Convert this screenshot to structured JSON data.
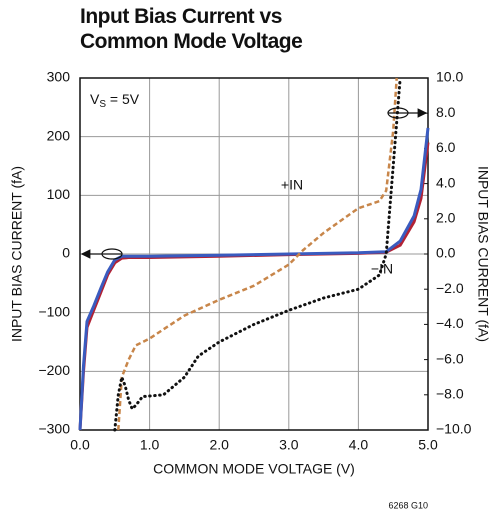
{
  "chart_data": {
    "type": "line",
    "title": "Input Bias Current vs Common Mode Voltage",
    "supply_label": {
      "symbol": "V",
      "subscript": "S",
      "text": " = 5V"
    },
    "x_label": "COMMON MODE VOLTAGE (V)",
    "y_label": "INPUT BIAS CURRENT (fA)",
    "y2_label": "INPUT BIAS CURRENT (fA)",
    "footnote": "6268 G10",
    "grid": true,
    "xlim": [
      0,
      5
    ],
    "xticks": [
      {
        "value": 0,
        "label": "0.0"
      },
      {
        "value": 1,
        "label": "1.0"
      },
      {
        "value": 2,
        "label": "2.0"
      },
      {
        "value": 3,
        "label": "3.0"
      },
      {
        "value": 4,
        "label": "4.0"
      },
      {
        "value": 5,
        "label": "5.0"
      }
    ],
    "ylim": [
      -300,
      300
    ],
    "yticks": [
      {
        "value": -300,
        "label": "−300"
      },
      {
        "value": -200,
        "label": "−200"
      },
      {
        "value": -100,
        "label": "−100"
      },
      0,
      100,
      200,
      300
    ],
    "y2lim": [
      -10,
      10
    ],
    "y2ticks": [
      {
        "value": -10,
        "label": "−10.0"
      },
      {
        "value": -8,
        "label": "−8.0"
      },
      {
        "value": -6,
        "label": "−6.0"
      },
      {
        "value": -4,
        "label": "−4.0"
      },
      {
        "value": -2,
        "label": "−2.0"
      },
      {
        "value": 0,
        "label": "0.0"
      },
      {
        "value": 2,
        "label": "2.0"
      },
      {
        "value": 4,
        "label": "4.0"
      },
      {
        "value": 6,
        "label": "6.0"
      },
      {
        "value": 8,
        "label": "8.0"
      },
      {
        "value": 10,
        "label": "10.0"
      }
    ],
    "series": [
      {
        "color": "#b22234",
        "style": "solid",
        "x": [
          0,
          0.05,
          0.1,
          0.2,
          0.3,
          0.4,
          0.5,
          0.6,
          0.7,
          1.0,
          2.0,
          3.0,
          4.0,
          4.4,
          4.6,
          4.8,
          4.9,
          5.0
        ],
        "values": [
          -300,
          -200,
          -125,
          -95,
          -65,
          -35,
          -15,
          -7,
          -6,
          -6,
          -4,
          -1,
          1,
          3,
          15,
          55,
          95,
          190
        ]
      },
      {
        "color": "#3a5bbf",
        "style": "solid",
        "x": [
          0,
          0.05,
          0.1,
          0.2,
          0.3,
          0.4,
          0.5,
          0.6,
          0.7,
          1.0,
          2.0,
          3.0,
          4.0,
          4.4,
          4.6,
          4.8,
          4.9,
          5.0
        ],
        "values": [
          -300,
          -190,
          -115,
          -88,
          -58,
          -30,
          -10,
          -4,
          -4,
          -4,
          -2,
          0,
          2,
          4,
          22,
          65,
          110,
          215
        ]
      },
      {
        "name": "+IN",
        "axis": "y2",
        "color": "#c8864a",
        "style": "dashed",
        "x": [
          0.55,
          0.6,
          0.7,
          0.8,
          1.0,
          1.5,
          2.0,
          2.5,
          3.0,
          3.2,
          3.5,
          4.0,
          4.3,
          4.4,
          4.5,
          4.55
        ],
        "values": [
          -10,
          -7,
          -6,
          -5.2,
          -4.8,
          -3.5,
          -2.6,
          -1.8,
          -0.6,
          0.2,
          1.2,
          2.6,
          3.0,
          3.6,
          7,
          10
        ]
      },
      {
        "name": "−IN",
        "axis": "y2",
        "color": "#111111",
        "style": "dotted",
        "x": [
          0.5,
          0.55,
          0.6,
          0.65,
          0.7,
          0.75,
          0.8,
          0.9,
          1.2,
          1.5,
          1.7,
          2.0,
          2.5,
          3.0,
          3.5,
          4.0,
          4.3,
          4.4,
          4.5,
          4.6
        ],
        "values": [
          -10,
          -8,
          -7,
          -7.5,
          -8.3,
          -8.8,
          -8.6,
          -8.1,
          -8,
          -7,
          -5.8,
          -5,
          -4,
          -3.2,
          -2.5,
          -2,
          -1.2,
          0,
          5,
          10
        ]
      }
    ]
  }
}
